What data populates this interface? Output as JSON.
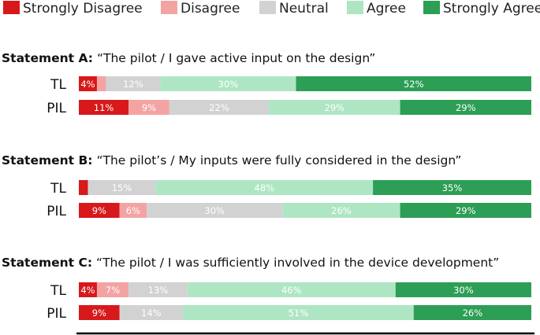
{
  "chart_data": {
    "type": "bar",
    "orientation": "horizontal",
    "stacked": true,
    "percent_stacked": true,
    "legend_placement": "top",
    "grid": false,
    "legend": [
      {
        "name": "Strongly Disagree",
        "color": "#d7191c"
      },
      {
        "name": "Disagree",
        "color": "#f4a3a3"
      },
      {
        "name": "Neutral",
        "color": "#d2d2d2"
      },
      {
        "name": "Agree",
        "color": "#aee6c4"
      },
      {
        "name": "Strongly Agree",
        "color": "#2d9e55"
      }
    ],
    "statements": [
      {
        "label": "Statement A:",
        "text": "“The pilot / I gave active input on the design”",
        "groups": [
          {
            "name": "TL",
            "values": [
              4,
              2,
              12,
              30,
              52
            ],
            "labels": [
              "4%",
              "2%",
              "12%",
              "30%",
              "52%"
            ]
          },
          {
            "name": "PIL",
            "values": [
              11,
              9,
              22,
              29,
              29
            ],
            "labels": [
              "11%",
              "9%",
              "22%",
              "29%",
              "29%"
            ]
          }
        ]
      },
      {
        "label": "Statement B:",
        "text": "“The pilot’s / My inputs were fully considered in the design”",
        "groups": [
          {
            "name": "TL",
            "values": [
              2,
              0,
              15,
              48,
              35
            ],
            "labels": [
              "2%",
              "",
              "15%",
              "48%",
              "35%"
            ]
          },
          {
            "name": "PIL",
            "values": [
              9,
              6,
              30,
              26,
              29
            ],
            "labels": [
              "9%",
              "6%",
              "30%",
              "26%",
              "29%"
            ]
          }
        ]
      },
      {
        "label": "Statement C:",
        "text": "“The pilot / I was sufficiently involved in the device development”",
        "groups": [
          {
            "name": "TL",
            "values": [
              4,
              7,
              13,
              46,
              30
            ],
            "labels": [
              "4%",
              "7%",
              "13%",
              "46%",
              "30%"
            ]
          },
          {
            "name": "PIL",
            "values": [
              9,
              0,
              14,
              51,
              26
            ],
            "labels": [
              "9%",
              "",
              "14%",
              "51%",
              "26%"
            ]
          }
        ]
      }
    ]
  }
}
